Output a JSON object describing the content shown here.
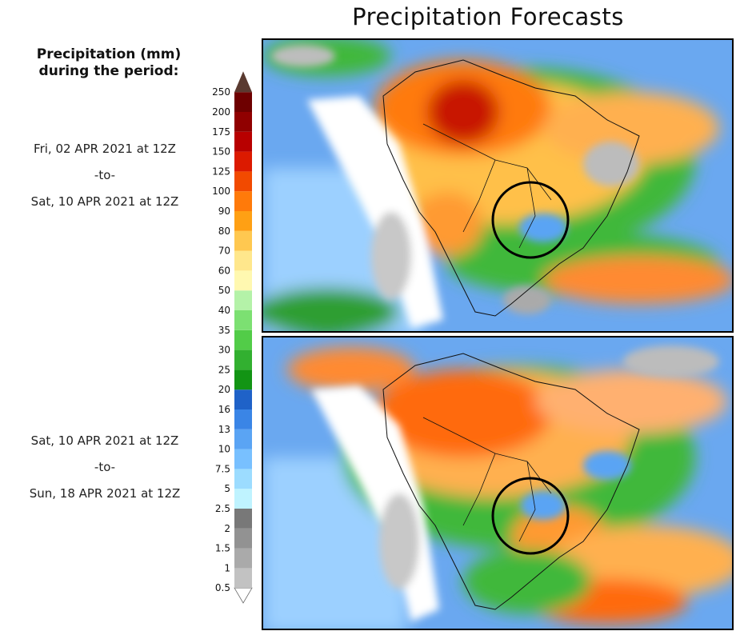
{
  "title": "Precipitation Forecasts",
  "legend": {
    "title_line1": "Precipitation (mm)",
    "title_line2": "during the period:",
    "levels": [
      "0.5",
      "1",
      "1.5",
      "2",
      "2.5",
      "5",
      "7.5",
      "10",
      "13",
      "16",
      "20",
      "25",
      "30",
      "35",
      "40",
      "50",
      "60",
      "70",
      "80",
      "90",
      "100",
      "125",
      "150",
      "175",
      "200",
      "250"
    ],
    "colors": [
      "#ffffff",
      "#c2c2c2",
      "#aaaaaa",
      "#929292",
      "#787878",
      "#bff3ff",
      "#9cdcff",
      "#78c0ff",
      "#5aa4f4",
      "#3a85e6",
      "#1f62c8",
      "#129414",
      "#32b030",
      "#52cc48",
      "#7ce072",
      "#b4f2a8",
      "#fff8b0",
      "#ffe78c",
      "#ffc850",
      "#ffa014",
      "#ff7a0a",
      "#f24a00",
      "#dc1a00",
      "#b80000",
      "#900000",
      "#6e0000",
      "#5a3a30"
    ]
  },
  "periods": [
    {
      "start": "Fri, 02 APR 2021 at 12Z",
      "sep": "-to-",
      "end": "Sat, 10 APR 2021 at 12Z"
    },
    {
      "start": "Sat, 10 APR 2021 at 12Z",
      "sep": "-to-",
      "end": "Sun, 18 APR 2021 at 12Z"
    }
  ]
}
